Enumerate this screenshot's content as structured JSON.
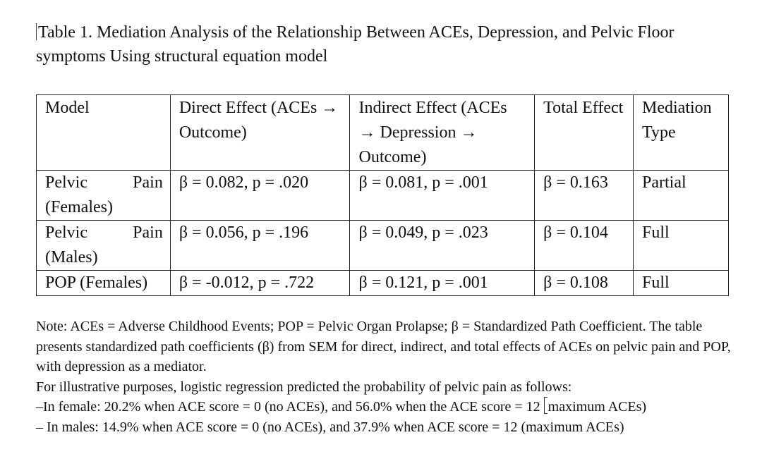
{
  "caption": {
    "text": "Table 1. Mediation Analysis of the Relationship Between ACEs, Depression, and Pelvic Floor symptoms Using structural equation model"
  },
  "table": {
    "headers": [
      "Model",
      "Direct Effect (ACEs → Outcome)",
      "Indirect Effect (ACEs → Depression → Outcome)",
      "Total Effect",
      "Mediation Type"
    ],
    "rows": [
      {
        "model_a": "Pelvic",
        "model_b": "Pain",
        "model_c": "(Females)",
        "direct": "β = 0.082, p = .020",
        "indirect": "β = 0.081, p = .001",
        "total": "β = 0.163",
        "type": "Partial"
      },
      {
        "model_a": "Pelvic",
        "model_b": "Pain",
        "model_c": "(Males)",
        "direct": "β = 0.056, p = .196",
        "indirect": "β = 0.049, p = .023",
        "total": "β = 0.104",
        "type": "Full"
      },
      {
        "model_a": "POP (Females)",
        "direct": "β = -0.012, p = .722",
        "indirect": "β = 0.121, p = .001",
        "total": "β = 0.108",
        "type": "Full"
      }
    ]
  },
  "note": {
    "definitions": "Note: ACEs = Adverse Childhood Events; POP = Pelvic Organ Prolapse; β = Standardized Path Coefficient. The table presents standardized path coefficients (β) from SEM for direct, indirect, and total effects of ACEs on pelvic pain and POP, with depression as a mediator.",
    "illustration": "For illustrative purposes, logistic regression predicted the probability of pelvic pain as follows:",
    "female_a": "–In female: 20.2% when ACE score = 0 (no ACEs), and 56.0% when the ACE score = 12 ",
    "female_b": "maximum ACEs)",
    "male": "– In males: 14.9% when ACE score = 0 (no ACEs), and 37.9% when ACE score = 12 (maximum ACEs)"
  }
}
